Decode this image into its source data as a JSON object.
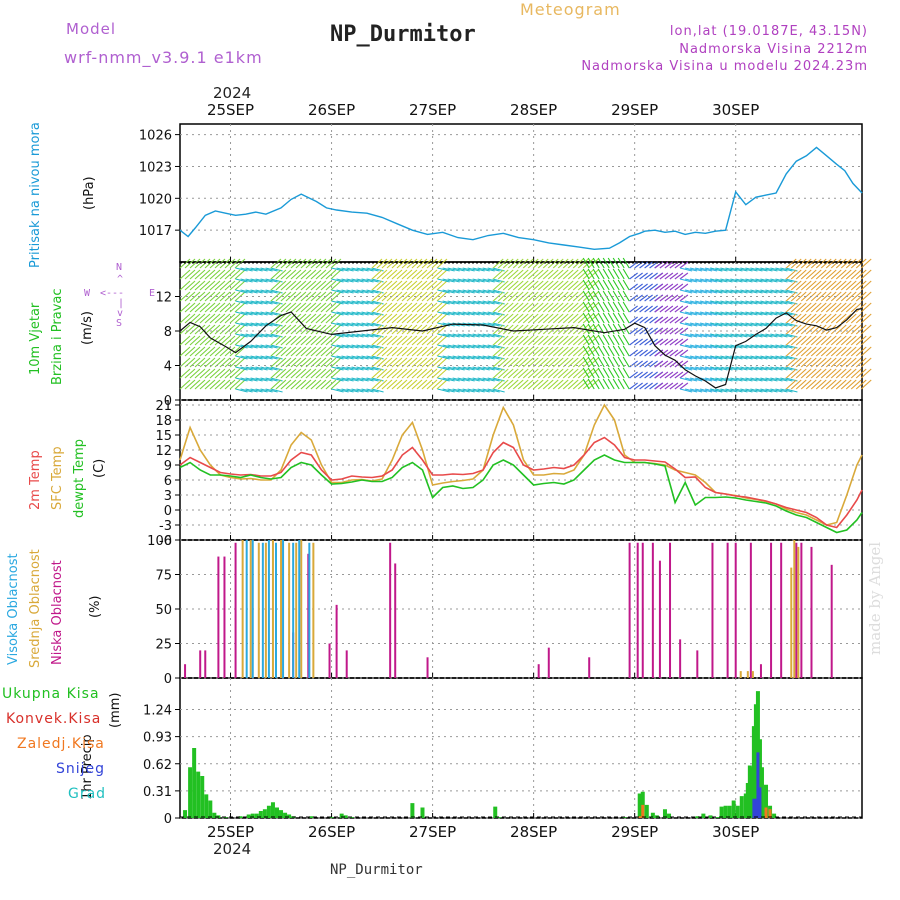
{
  "header": {
    "model_label": "Model",
    "model_name": "wrf-nmm_v3.9.1 e1km",
    "station": "NP_Durmitor",
    "product": "Meteogram",
    "lonlat": "lon,lat (19.0187E, 43.15N)",
    "elevation": "Nadmorska Visina 2212m",
    "model_elevation": "Nadmorska Visina u modelu 2024.23m",
    "year": "2024",
    "footer_station": "NP_Durmitor",
    "watermark": "made by Angel"
  },
  "colors": {
    "pressure": "#1a9ad7",
    "dewpoint": "#22c022",
    "t2m": "#e84a4a",
    "sfc": "#d9a93a",
    "high_cloud": "#2aa8e0",
    "mid_cloud": "#d9a93a",
    "low_cloud": "#c0188a",
    "total_precip": "#22c022",
    "conv_precip": "#d8302a",
    "frz_precip": "#f07820",
    "snow": "#3344d8",
    "hail": "#20c0c0",
    "model_label": "#b060d0",
    "header_info": "#b040c0",
    "product_title": "#e8b860"
  },
  "chart_data": [
    {
      "type": "line",
      "panel": "pressure",
      "ylabel_left": "Pritisak na nivou mora",
      "unit": "(hPa)",
      "ylim": [
        1014,
        1027
      ],
      "yticks": [
        1017,
        1020,
        1023,
        1026
      ],
      "xlim_days": [
        0,
        6.75
      ],
      "xtick_labels": [
        "25SEP",
        "26SEP",
        "27SEP",
        "28SEP",
        "29SEP",
        "30SEP"
      ],
      "grid": true,
      "series": [
        {
          "x": [
            0,
            0.08,
            0.15,
            0.25,
            0.35,
            0.45,
            0.55,
            0.65,
            0.75,
            0.85,
            1.0,
            1.1,
            1.2,
            1.35,
            1.45,
            1.55,
            1.7,
            1.85,
            2.0,
            2.15,
            2.3,
            2.45,
            2.6,
            2.75,
            2.9,
            3.05,
            3.2,
            3.35,
            3.5,
            3.65,
            3.8,
            3.95,
            4.1,
            4.25,
            4.35,
            4.45,
            4.55,
            4.6,
            4.7,
            4.8,
            4.9,
            5.0,
            5.1,
            5.2,
            5.3,
            5.4,
            5.5,
            5.6,
            5.7,
            5.8,
            5.9,
            6.0,
            6.1,
            6.2,
            6.3,
            6.4,
            6.5,
            6.58,
            6.66,
            6.75
          ],
          "values": [
            1017,
            1016.4,
            1017.2,
            1018.4,
            1018.8,
            1018.6,
            1018.4,
            1018.5,
            1018.7,
            1018.5,
            1019.1,
            1019.9,
            1020.4,
            1019.7,
            1019.1,
            1018.9,
            1018.7,
            1018.6,
            1018.2,
            1017.6,
            1017,
            1016.6,
            1016.8,
            1016.3,
            1016.1,
            1016.5,
            1016.7,
            1016.3,
            1016.1,
            1015.8,
            1015.6,
            1015.4,
            1015.2,
            1015.3,
            1015.8,
            1016.4,
            1016.7,
            1016.9,
            1017,
            1016.8,
            1016.9,
            1016.6,
            1016.8,
            1016.7,
            1016.9,
            1017,
            1020.6,
            1019.4,
            1020.1,
            1020.3,
            1020.5,
            1022.3,
            1023.5,
            1024,
            1024.8,
            1024,
            1023.2,
            1022.6,
            1021.4,
            1020.5
          ]
        }
      ]
    },
    {
      "type": "line",
      "panel": "wind",
      "ylabel_left_1": "10m Vjetar",
      "ylabel_left_2": "Brzina i Pravac",
      "unit": "(m/s)",
      "compass_labels": [
        "W",
        "<---",
        "E",
        "N",
        "^",
        "|",
        "v",
        "S"
      ],
      "ylim": [
        0,
        16
      ],
      "yticks": [
        0,
        4,
        8,
        12
      ],
      "grid": true,
      "series": [
        {
          "name": "speed",
          "x": [
            0,
            0.1,
            0.2,
            0.3,
            0.45,
            0.55,
            0.7,
            0.85,
            1.0,
            1.1,
            1.25,
            1.5,
            1.8,
            2.1,
            2.4,
            2.7,
            3.0,
            3.3,
            3.6,
            3.9,
            4.2,
            4.4,
            4.5,
            4.6,
            4.7,
            4.8,
            4.9,
            5.0,
            5.1,
            5.2,
            5.3,
            5.4,
            5.5,
            5.6,
            5.7,
            5.8,
            5.9,
            6.0,
            6.1,
            6.2,
            6.3,
            6.4,
            6.5,
            6.6,
            6.7,
            6.75
          ],
          "values": [
            8.0,
            9.0,
            8.5,
            7.2,
            6.2,
            5.5,
            6.8,
            8.6,
            9.8,
            10.2,
            8.3,
            7.6,
            8.0,
            8.4,
            8.0,
            8.8,
            8.7,
            8.0,
            8.2,
            8.4,
            7.8,
            8.2,
            8.9,
            8.4,
            6.3,
            5.2,
            4.6,
            3.5,
            2.8,
            2.2,
            1.4,
            1.8,
            6.3,
            6.8,
            7.6,
            8.3,
            9.5,
            10.1,
            9.2,
            8.8,
            8.6,
            8.1,
            8.4,
            9.3,
            10.5,
            10.6
          ]
        }
      ],
      "color_bands": [
        {
          "from": 0.0,
          "to": 0.55,
          "dir": "SW",
          "color": "#7ad23c"
        },
        {
          "from": 0.55,
          "to": 0.9,
          "dir": "N",
          "color": "#20b8c8"
        },
        {
          "from": 0.9,
          "to": 1.5,
          "dir": "SW",
          "color": "#7ad23c"
        },
        {
          "from": 1.5,
          "to": 1.9,
          "dir": "N",
          "color": "#20b8c8"
        },
        {
          "from": 1.9,
          "to": 2.55,
          "dir": "SW",
          "color": "#c8d030"
        },
        {
          "from": 2.55,
          "to": 3.1,
          "dir": "N",
          "color": "#20b8c8"
        },
        {
          "from": 3.1,
          "to": 4.05,
          "dir": "SW",
          "color": "#9ed83a"
        },
        {
          "from": 4.05,
          "to": 4.45,
          "dir": "S",
          "color": "#2ac820"
        },
        {
          "from": 4.45,
          "to": 4.7,
          "dir": "E",
          "color": "#4060d8"
        },
        {
          "from": 4.7,
          "to": 4.95,
          "dir": "E",
          "color": "#9040c8"
        },
        {
          "from": 4.95,
          "to": 5.25,
          "dir": "N",
          "color": "#2ab0e0"
        },
        {
          "from": 5.25,
          "to": 6.0,
          "dir": "N",
          "color": "#20b8c8"
        },
        {
          "from": 6.0,
          "to": 6.75,
          "dir": "SW",
          "color": "#e0a030"
        }
      ]
    },
    {
      "type": "line",
      "panel": "temperature",
      "ylabel_left_1": "2m Temp",
      "ylabel_left_2": "SFC Temp",
      "ylabel_left_3": "dewpt Temp",
      "unit": "(C)",
      "ylim": [
        -6,
        22
      ],
      "yticks": [
        -6,
        -3,
        0,
        3,
        6,
        9,
        12,
        15,
        18,
        21
      ],
      "grid": true,
      "x": [
        0,
        0.1,
        0.2,
        0.3,
        0.4,
        0.5,
        0.6,
        0.7,
        0.8,
        0.9,
        1.0,
        1.1,
        1.2,
        1.3,
        1.4,
        1.5,
        1.6,
        1.7,
        1.8,
        1.9,
        2.0,
        2.1,
        2.2,
        2.3,
        2.4,
        2.5,
        2.6,
        2.7,
        2.8,
        2.9,
        3.0,
        3.1,
        3.2,
        3.3,
        3.4,
        3.5,
        3.6,
        3.7,
        3.8,
        3.9,
        4.0,
        4.1,
        4.2,
        4.3,
        4.4,
        4.5,
        4.6,
        4.7,
        4.8,
        4.9,
        5.0,
        5.1,
        5.2,
        5.3,
        5.4,
        5.5,
        5.6,
        5.7,
        5.8,
        5.9,
        6.0,
        6.1,
        6.2,
        6.3,
        6.4,
        6.5,
        6.6,
        6.7,
        6.75
      ],
      "series": [
        {
          "name": "2m Temp",
          "values": [
            9,
            10.5,
            9.5,
            8.5,
            7.5,
            7.2,
            7.0,
            7.1,
            6.8,
            6.8,
            7.5,
            10,
            11.5,
            11,
            8,
            6,
            6.2,
            6.8,
            6.6,
            6.5,
            6.8,
            8,
            11,
            12.5,
            10,
            7,
            7.0,
            7.2,
            7.1,
            7.3,
            8,
            11.5,
            13.5,
            12.5,
            9,
            8,
            8.2,
            8.5,
            8.3,
            9,
            11,
            13.5,
            14.5,
            13,
            10.5,
            10,
            10,
            9.8,
            9.6,
            8.2,
            6.5,
            6.6,
            4.5,
            3.5,
            3.2,
            2.8,
            2.6,
            2.2,
            1.8,
            1.2,
            0.5,
            0,
            -0.5,
            -1.5,
            -3,
            -3.5,
            -1,
            2,
            4
          ]
        },
        {
          "name": "SFC Temp",
          "values": [
            10,
            16.5,
            12,
            9,
            7,
            6.5,
            6.2,
            6.3,
            6.0,
            6.0,
            8,
            13,
            15.5,
            14,
            9,
            5.5,
            5.5,
            6.0,
            6.1,
            5.8,
            6.2,
            10,
            15,
            17.5,
            12,
            5,
            5.4,
            5.7,
            5.9,
            6.2,
            8,
            15,
            20.5,
            17,
            10,
            7,
            7.0,
            7.3,
            7.2,
            8,
            11,
            17,
            21,
            18,
            11,
            9.5,
            9.5,
            9.3,
            9.0,
            8,
            7.5,
            7.0,
            5.5,
            3.5,
            3.2,
            2.9,
            2.4,
            2.1,
            1.7,
            1.2,
            0.2,
            -0.5,
            -1,
            -2,
            -3,
            -2.5,
            3,
            9,
            11
          ]
        },
        {
          "name": "dewpt Temp",
          "values": [
            8.5,
            9.5,
            8.0,
            7.0,
            7.0,
            6.8,
            6.5,
            7.0,
            6.5,
            6.2,
            6.5,
            8.5,
            9.5,
            9,
            7,
            5.2,
            5.3,
            5.6,
            6.0,
            5.7,
            5.7,
            6.5,
            8.5,
            9.5,
            8,
            2.5,
            4.5,
            4.8,
            4.3,
            4.5,
            6,
            9,
            10,
            9,
            7,
            5.0,
            5.3,
            5.5,
            5.2,
            6,
            8,
            10,
            11,
            10,
            9.5,
            9.5,
            9.5,
            9.2,
            8.8,
            1.5,
            5.5,
            1.0,
            2.5,
            2.5,
            2.6,
            2.4,
            2.0,
            1.7,
            1.4,
            0.8,
            -0.2,
            -1,
            -1.5,
            -2.5,
            -3.5,
            -4.5,
            -4,
            -2,
            -0.5
          ]
        }
      ]
    },
    {
      "type": "bar",
      "panel": "clouds",
      "ylabel_left_1": "Visoka Oblacnost",
      "ylabel_left_2": "Srednja Oblacnost",
      "ylabel_left_3": "Niska Oblacnost",
      "unit": "(%)",
      "ylim": [
        0,
        100
      ],
      "yticks": [
        0,
        25,
        50,
        75,
        100
      ],
      "grid": true,
      "series": [
        {
          "name": "Niska Oblacnost",
          "x": [
            0.05,
            0.2,
            0.25,
            0.38,
            0.44,
            0.55,
            1.12,
            1.27,
            1.48,
            1.55,
            1.65,
            2.08,
            2.13,
            2.45,
            3.55,
            3.65,
            4.05,
            4.45,
            4.53,
            4.58,
            4.68,
            4.75,
            4.85,
            4.95,
            5.12,
            5.27,
            5.42,
            5.5,
            5.65,
            5.75,
            5.85,
            5.95,
            6.1,
            6.15,
            6.25,
            6.45
          ],
          "values": [
            10,
            20,
            20,
            88,
            88,
            98,
            33,
            90,
            25,
            53,
            20,
            98,
            83,
            15,
            10,
            22,
            15,
            98,
            98,
            98,
            98,
            85,
            98,
            28,
            20,
            98,
            98,
            98,
            98,
            10,
            98,
            98,
            98,
            98,
            95,
            82
          ]
        },
        {
          "name": "Srednja Oblacnost",
          "x": [
            0.62,
            0.7,
            0.78,
            0.85,
            0.92,
            1.0,
            1.08,
            1.15,
            1.2,
            1.32,
            5.55,
            5.62,
            5.67,
            6.05,
            6.08,
            6.12
          ],
          "values": [
            100,
            100,
            98,
            98,
            100,
            100,
            98,
            98,
            100,
            98,
            5,
            5,
            5,
            80,
            100,
            95
          ]
        },
        {
          "name": "Visoka Oblacnost",
          "x": [
            0.66,
            0.72,
            0.82,
            0.88,
            0.95,
            1.02,
            1.12,
            1.18,
            1.28
          ],
          "values": [
            100,
            100,
            98,
            100,
            98,
            100,
            98,
            100,
            98
          ]
        }
      ]
    },
    {
      "type": "bar",
      "panel": "precipitation",
      "ylabel_left_1": "1hr Precip",
      "unit": "(mm)",
      "legend": [
        "Ukupna Kisa",
        "Konvek.Kisa",
        "Zaledj.Kisa",
        "Snijeg",
        "Grad"
      ],
      "ylim": [
        0,
        1.6
      ],
      "yticks": [
        0,
        0.31,
        0.62,
        0.93,
        1.24
      ],
      "grid": true,
      "x": [
        0.05,
        0.1,
        0.14,
        0.18,
        0.22,
        0.26,
        0.3,
        0.34,
        0.38,
        0.45,
        0.6,
        0.68,
        0.72,
        0.76,
        0.8,
        0.84,
        0.88,
        0.92,
        0.96,
        1.0,
        1.04,
        1.08,
        1.12,
        1.3,
        1.5,
        1.6,
        1.64,
        1.7,
        2.3,
        2.4,
        3.12,
        3.16,
        4.4,
        4.55,
        4.58,
        4.62,
        4.68,
        4.72,
        4.8,
        4.84,
        5.12,
        5.18,
        5.25,
        5.32,
        5.36,
        5.4,
        5.44,
        5.48,
        5.52,
        5.56,
        5.6,
        5.62,
        5.64,
        5.66,
        5.68,
        5.7,
        5.72,
        5.74,
        5.76,
        5.8,
        5.84,
        5.88
      ],
      "series": [
        {
          "name": "Ukupna Kisa",
          "values": [
            0.09,
            0.58,
            0.8,
            0.53,
            0.48,
            0.27,
            0.2,
            0.06,
            0.03,
            0.01,
            0.02,
            0.04,
            0.05,
            0.05,
            0.08,
            0.1,
            0.14,
            0.18,
            0.12,
            0.09,
            0.06,
            0.04,
            0.02,
            0.02,
            0.01,
            0.05,
            0.03,
            0.01,
            0.17,
            0.12,
            0.13,
            0.01,
            0.01,
            0.28,
            0.3,
            0.15,
            0.06,
            0.03,
            0.1,
            0.05,
            0.02,
            0.05,
            0.03,
            0.01,
            0.13,
            0.14,
            0.14,
            0.2,
            0.14,
            0.25,
            0.28,
            0.4,
            0.6,
            0.58,
            1.05,
            1.3,
            1.45,
            0.9,
            0.58,
            0.38,
            0.14,
            0.05
          ]
        },
        {
          "name": "Zaledj.Kisa",
          "values": [
            0,
            0,
            0,
            0,
            0,
            0,
            0,
            0,
            0,
            0,
            0,
            0,
            0,
            0,
            0,
            0,
            0,
            0,
            0,
            0,
            0,
            0,
            0,
            0,
            0,
            0,
            0,
            0,
            0,
            0,
            0,
            0,
            0,
            0.02,
            0.15,
            0,
            0,
            0,
            0,
            0,
            0,
            0,
            0,
            0,
            0,
            0,
            0,
            0,
            0,
            0,
            0,
            0,
            0,
            0,
            0,
            0,
            0,
            0,
            0,
            0.12,
            0.1,
            0
          ]
        },
        {
          "name": "Snijeg",
          "values": [
            0,
            0,
            0,
            0,
            0,
            0,
            0,
            0,
            0,
            0,
            0,
            0,
            0,
            0,
            0,
            0,
            0,
            0,
            0,
            0,
            0,
            0,
            0,
            0,
            0,
            0,
            0,
            0,
            0,
            0,
            0,
            0,
            0,
            0,
            0,
            0,
            0,
            0,
            0,
            0,
            0,
            0,
            0,
            0,
            0,
            0,
            0,
            0,
            0,
            0,
            0,
            0,
            0,
            0,
            0.22,
            0.22,
            0.75,
            0.35,
            0,
            0,
            0,
            0
          ]
        }
      ]
    }
  ]
}
